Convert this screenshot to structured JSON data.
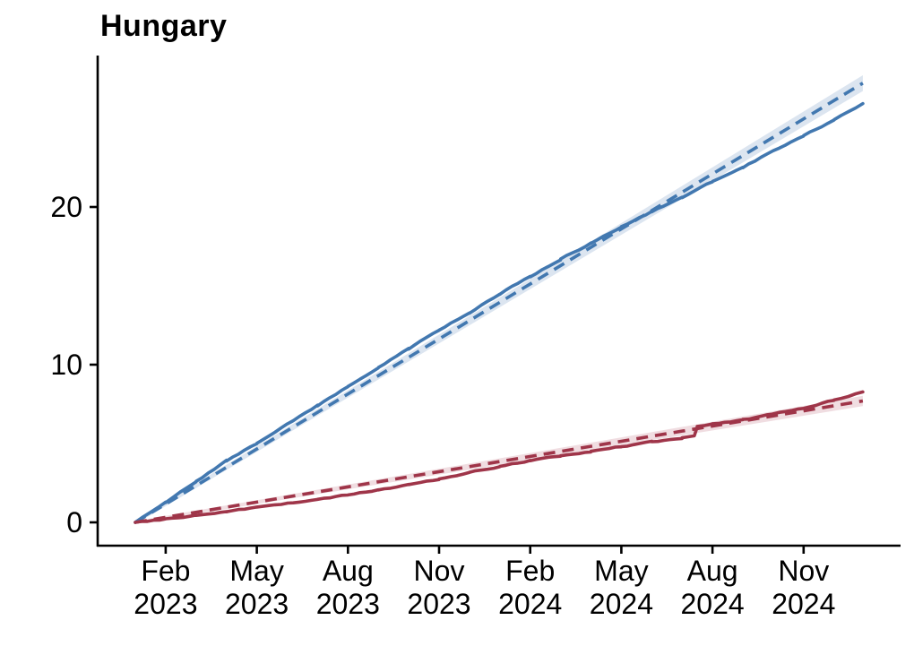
{
  "page": {
    "title": "Hungary"
  },
  "chart_data": {
    "type": "line",
    "title": "Hungary",
    "xlabel": "",
    "ylabel": "",
    "x_unit": "months since Jan 2023",
    "x_range_months": [
      0,
      23.95
    ],
    "ylim": [
      0,
      29.5
    ],
    "grid": false,
    "legend": "none",
    "colors": {
      "blue_line": "#4278b0",
      "blue_band": "#dce5f0",
      "red_line": "#9f3549",
      "red_band": "#f0dde1",
      "axis": "#000000",
      "text": "#000000",
      "background": "#ffffff"
    },
    "y_axis": {
      "tick_values": [
        0,
        10,
        20
      ],
      "tick_labels": [
        "0",
        "10",
        "20"
      ]
    },
    "x_axis": {
      "ticks": [
        {
          "m": 1,
          "month": "Feb",
          "year": "2023"
        },
        {
          "m": 4,
          "month": "May",
          "year": "2023"
        },
        {
          "m": 7,
          "month": "Aug",
          "year": "2023"
        },
        {
          "m": 10,
          "month": "Nov",
          "year": "2023"
        },
        {
          "m": 13,
          "month": "Feb",
          "year": "2024"
        },
        {
          "m": 16,
          "month": "May",
          "year": "2024"
        },
        {
          "m": 19,
          "month": "Aug",
          "year": "2024"
        },
        {
          "m": 22,
          "month": "Nov",
          "year": "2024"
        }
      ]
    },
    "series": [
      {
        "name": "blue-expected-trend",
        "style": "dashed",
        "color_key": "blue_line",
        "band_color_key": "blue_band",
        "band_halfwidth": [
          0.12,
          0.5
        ],
        "points": [
          [
            0,
            0
          ],
          [
            23.95,
            27.85
          ]
        ]
      },
      {
        "name": "blue-observed",
        "style": "solid",
        "color_key": "blue_line",
        "jitter": true,
        "points": [
          [
            0,
            0
          ],
          [
            0.5,
            0.65
          ],
          [
            1,
            1.3
          ],
          [
            1.5,
            2.0
          ],
          [
            2,
            2.6
          ],
          [
            3,
            3.9
          ],
          [
            4,
            5.0
          ],
          [
            5,
            6.2
          ],
          [
            6,
            7.4
          ],
          [
            7,
            8.6
          ],
          [
            8,
            9.8
          ],
          [
            9,
            11.0
          ],
          [
            10,
            12.2
          ],
          [
            11,
            13.3
          ],
          [
            12,
            14.5
          ],
          [
            13,
            15.6
          ],
          [
            14,
            16.7
          ],
          [
            15,
            17.7
          ],
          [
            16,
            18.75
          ],
          [
            17,
            19.7
          ],
          [
            18,
            20.6
          ],
          [
            19,
            21.6
          ],
          [
            20,
            22.5
          ],
          [
            21,
            23.55
          ],
          [
            22,
            24.55
          ],
          [
            23,
            25.5
          ],
          [
            23.95,
            26.55
          ]
        ]
      },
      {
        "name": "red-expected-trend",
        "style": "dashed",
        "color_key": "red_line",
        "band_color_key": "red_band",
        "band_halfwidth": [
          0.08,
          0.33
        ],
        "points": [
          [
            0,
            0
          ],
          [
            23.95,
            7.7
          ]
        ]
      },
      {
        "name": "red-observed",
        "style": "solid",
        "color_key": "red_line",
        "jitter": true,
        "points": [
          [
            0,
            0
          ],
          [
            1,
            0.2
          ],
          [
            2,
            0.45
          ],
          [
            3,
            0.7
          ],
          [
            4,
            0.95
          ],
          [
            5,
            1.2
          ],
          [
            6,
            1.45
          ],
          [
            7,
            1.75
          ],
          [
            8,
            2.05
          ],
          [
            9,
            2.4
          ],
          [
            10,
            2.75
          ],
          [
            11,
            3.15
          ],
          [
            12,
            3.55
          ],
          [
            13,
            3.9
          ],
          [
            14,
            4.2
          ],
          [
            15,
            4.5
          ],
          [
            16,
            4.8
          ],
          [
            17,
            5.1
          ],
          [
            18,
            5.35
          ],
          [
            18.4,
            5.5
          ],
          [
            18.5,
            6.1
          ],
          [
            19,
            6.25
          ],
          [
            20,
            6.5
          ],
          [
            21,
            6.85
          ],
          [
            22,
            7.25
          ],
          [
            23,
            7.75
          ],
          [
            23.95,
            8.3
          ]
        ]
      }
    ]
  }
}
